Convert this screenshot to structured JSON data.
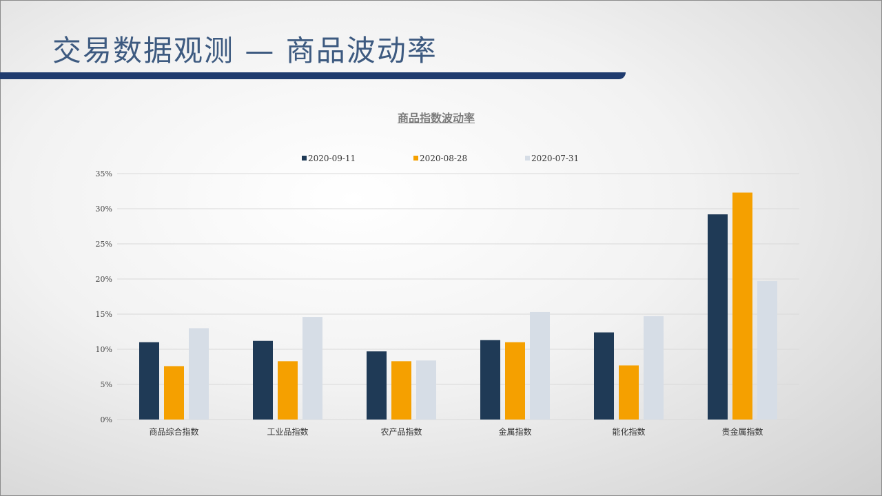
{
  "header": {
    "title": "交易数据观测 — 商品波动率"
  },
  "chart_data": {
    "type": "bar",
    "title": "商品指数波动率",
    "categories": [
      "商品综合指数",
      "工业品指数",
      "农产品指数",
      "金属指数",
      "能化指数",
      "贵金属指数"
    ],
    "series": [
      {
        "name": "2020-09-11",
        "color": "#1f3a56",
        "values": [
          11.0,
          11.2,
          9.7,
          11.3,
          12.4,
          29.2
        ]
      },
      {
        "name": "2020-08-28",
        "color": "#f5a000",
        "values": [
          7.6,
          8.3,
          8.3,
          11.0,
          7.7,
          32.3
        ]
      },
      {
        "name": "2020-07-31",
        "color": "#d6dde6",
        "values": [
          13.0,
          14.6,
          8.4,
          15.3,
          14.7,
          19.7
        ]
      }
    ],
    "ylim": [
      0,
      35
    ],
    "yticks": [
      "0%",
      "5%",
      "10%",
      "15%",
      "20%",
      "25%",
      "30%",
      "35%"
    ],
    "grid": true,
    "legend": "top"
  }
}
